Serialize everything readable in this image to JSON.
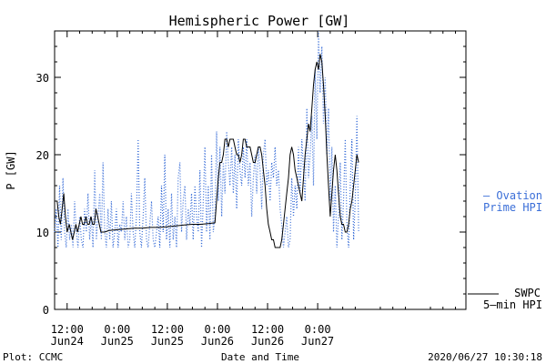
{
  "chart_data": {
    "type": "line",
    "title": "Hemispheric Power [GW]",
    "ylabel": "P [GW]",
    "xlabel": "Date and Time",
    "ylim": [
      0,
      36
    ],
    "yticks": [
      0,
      10,
      20,
      30
    ],
    "x_unit": "hours since 2020-06-24 00:00",
    "xlim": [
      9.0,
      107.5
    ],
    "x_ticks": [
      {
        "x": 12,
        "line1": "12:00",
        "line2": "Jun24"
      },
      {
        "x": 24,
        "line1": "0:00",
        "line2": "Jun25"
      },
      {
        "x": 36,
        "line1": "12:00",
        "line2": "Jun25"
      },
      {
        "x": 48,
        "line1": "0:00",
        "line2": "Jun26"
      },
      {
        "x": 60,
        "line1": "12:00",
        "line2": "Jun26"
      },
      {
        "x": 72,
        "line1": "0:00",
        "line2": "Jun27"
      }
    ],
    "footer": {
      "left": "Plot: CCMC",
      "timestamp": "2020/06/27 10:30:18"
    },
    "series": [
      {
        "name": "Ovation Prime HPI",
        "legend_label": "— Ovation",
        "legend_label2": "Prime HPI",
        "style": "dotted",
        "color": "#3b6fd8",
        "points": [
          [
            9.0,
            10
          ],
          [
            9.4,
            13
          ],
          [
            9.8,
            8
          ],
          [
            10.2,
            16
          ],
          [
            10.6,
            9
          ],
          [
            11.0,
            17
          ],
          [
            11.4,
            10
          ],
          [
            11.8,
            8
          ],
          [
            12.2,
            13
          ],
          [
            12.6,
            9
          ],
          [
            13.0,
            11
          ],
          [
            13.4,
            8
          ],
          [
            13.8,
            14
          ],
          [
            14.2,
            10
          ],
          [
            14.6,
            8
          ],
          [
            15.0,
            12
          ],
          [
            15.4,
            9
          ],
          [
            15.8,
            8
          ],
          [
            16.2,
            13
          ],
          [
            16.6,
            10
          ],
          [
            17.0,
            15
          ],
          [
            17.4,
            9
          ],
          [
            17.8,
            12
          ],
          [
            18.2,
            8
          ],
          [
            18.6,
            18
          ],
          [
            19.0,
            9
          ],
          [
            19.4,
            12
          ],
          [
            19.8,
            15
          ],
          [
            20.2,
            9
          ],
          [
            20.6,
            19
          ],
          [
            21.0,
            10
          ],
          [
            21.4,
            8
          ],
          [
            21.8,
            13
          ],
          [
            22.2,
            9
          ],
          [
            22.6,
            14
          ],
          [
            23.0,
            8
          ],
          [
            23.4,
            10
          ],
          [
            23.8,
            13
          ],
          [
            24.2,
            8
          ],
          [
            24.6,
            11
          ],
          [
            25.0,
            10
          ],
          [
            25.4,
            14
          ],
          [
            25.8,
            9
          ],
          [
            26.2,
            12
          ],
          [
            26.6,
            8
          ],
          [
            27.0,
            9
          ],
          [
            27.4,
            15
          ],
          [
            27.8,
            10
          ],
          [
            28.2,
            8
          ],
          [
            28.6,
            12
          ],
          [
            29.0,
            22
          ],
          [
            29.4,
            10
          ],
          [
            29.8,
            8
          ],
          [
            30.2,
            12
          ],
          [
            30.6,
            17
          ],
          [
            31.0,
            9
          ],
          [
            31.4,
            8
          ],
          [
            31.8,
            11
          ],
          [
            32.2,
            14
          ],
          [
            32.6,
            9
          ],
          [
            33.0,
            8
          ],
          [
            33.4,
            10
          ],
          [
            33.8,
            12
          ],
          [
            34.2,
            8
          ],
          [
            34.6,
            16
          ],
          [
            35.0,
            10
          ],
          [
            35.4,
            20
          ],
          [
            35.8,
            9
          ],
          [
            36.2,
            13
          ],
          [
            36.6,
            8
          ],
          [
            37.0,
            15
          ],
          [
            37.4,
            9
          ],
          [
            37.8,
            12
          ],
          [
            38.2,
            8
          ],
          [
            38.6,
            17
          ],
          [
            39.0,
            19
          ],
          [
            39.4,
            10
          ],
          [
            39.8,
            14
          ],
          [
            40.2,
            16
          ],
          [
            40.6,
            9
          ],
          [
            41.0,
            13
          ],
          [
            41.4,
            11
          ],
          [
            41.8,
            15
          ],
          [
            42.2,
            9
          ],
          [
            42.6,
            16
          ],
          [
            43.0,
            12
          ],
          [
            43.4,
            10
          ],
          [
            43.8,
            18
          ],
          [
            44.2,
            8
          ],
          [
            44.6,
            14
          ],
          [
            45.0,
            21
          ],
          [
            45.4,
            10
          ],
          [
            45.8,
            16
          ],
          [
            46.2,
            9
          ],
          [
            46.6,
            20
          ],
          [
            47.0,
            10
          ],
          [
            47.4,
            12
          ],
          [
            47.8,
            23
          ],
          [
            48.2,
            14
          ],
          [
            48.6,
            21
          ],
          [
            49.0,
            12
          ],
          [
            49.4,
            19
          ],
          [
            49.8,
            15
          ],
          [
            50.2,
            23
          ],
          [
            50.6,
            19
          ],
          [
            51.0,
            16
          ],
          [
            51.4,
            21
          ],
          [
            51.8,
            15
          ],
          [
            52.2,
            20
          ],
          [
            52.6,
            13
          ],
          [
            53.0,
            22
          ],
          [
            53.4,
            18
          ],
          [
            53.8,
            16
          ],
          [
            54.2,
            21
          ],
          [
            54.6,
            17
          ],
          [
            55.0,
            22
          ],
          [
            55.4,
            16
          ],
          [
            55.8,
            19
          ],
          [
            56.2,
            12
          ],
          [
            56.6,
            17
          ],
          [
            57.0,
            20
          ],
          [
            57.4,
            15
          ],
          [
            57.8,
            21
          ],
          [
            58.2,
            18
          ],
          [
            58.6,
            13
          ],
          [
            59.0,
            20
          ],
          [
            59.4,
            22
          ],
          [
            59.8,
            16
          ],
          [
            60.2,
            18
          ],
          [
            60.6,
            14
          ],
          [
            61.0,
            19
          ],
          [
            61.4,
            17
          ],
          [
            61.8,
            21
          ],
          [
            62.2,
            16
          ],
          [
            62.6,
            18
          ],
          [
            63.0,
            13
          ],
          [
            63.4,
            11
          ],
          [
            63.8,
            8
          ],
          [
            64.2,
            10
          ],
          [
            64.6,
            12
          ],
          [
            65.0,
            8
          ],
          [
            65.4,
            9
          ],
          [
            65.8,
            17
          ],
          [
            66.2,
            12
          ],
          [
            66.6,
            16
          ],
          [
            67.0,
            13
          ],
          [
            67.4,
            21
          ],
          [
            67.8,
            15
          ],
          [
            68.2,
            22
          ],
          [
            68.6,
            18
          ],
          [
            69.0,
            14
          ],
          [
            69.4,
            26
          ],
          [
            69.8,
            17
          ],
          [
            70.2,
            20
          ],
          [
            70.6,
            25
          ],
          [
            71.0,
            16
          ],
          [
            71.4,
            31
          ],
          [
            71.8,
            22
          ],
          [
            72.2,
            36
          ],
          [
            72.6,
            28
          ],
          [
            73.0,
            34
          ],
          [
            73.4,
            24
          ],
          [
            73.8,
            30
          ],
          [
            74.2,
            20
          ],
          [
            74.6,
            26
          ],
          [
            75.0,
            14
          ],
          [
            75.4,
            21
          ],
          [
            75.8,
            10
          ],
          [
            76.2,
            16
          ],
          [
            76.6,
            8
          ],
          [
            77.0,
            12
          ],
          [
            77.4,
            19
          ],
          [
            77.8,
            9
          ],
          [
            78.2,
            14
          ],
          [
            78.6,
            22
          ],
          [
            79.0,
            11
          ],
          [
            79.4,
            8
          ],
          [
            79.8,
            16
          ],
          [
            80.2,
            22
          ],
          [
            80.6,
            9
          ],
          [
            81.0,
            14
          ],
          [
            81.4,
            25
          ],
          [
            81.8,
            10
          ]
        ]
      },
      {
        "name": "SWPC 5-min HPI",
        "legend_label": "SWPC",
        "legend_label2": "5—min HPI",
        "style": "solid",
        "color": "#000000",
        "points": [
          [
            9.0,
            14
          ],
          [
            9.6,
            14
          ],
          [
            10.0,
            12
          ],
          [
            10.4,
            11
          ],
          [
            10.8,
            13
          ],
          [
            11.2,
            15
          ],
          [
            11.6,
            12
          ],
          [
            12.0,
            10
          ],
          [
            12.5,
            11
          ],
          [
            12.9,
            10
          ],
          [
            13.3,
            9
          ],
          [
            13.7,
            10
          ],
          [
            14.1,
            11
          ],
          [
            14.5,
            10
          ],
          [
            14.9,
            11
          ],
          [
            15.3,
            12
          ],
          [
            15.7,
            11
          ],
          [
            16.1,
            11
          ],
          [
            16.5,
            12
          ],
          [
            16.9,
            11
          ],
          [
            17.3,
            11
          ],
          [
            17.7,
            12
          ],
          [
            18.1,
            11
          ],
          [
            18.5,
            11
          ],
          [
            18.9,
            13
          ],
          [
            19.3,
            12
          ],
          [
            19.7,
            11
          ],
          [
            20.1,
            10
          ],
          [
            20.5,
            10
          ],
          [
            21.0,
            10
          ],
          [
            22.0,
            10.2
          ],
          [
            24.0,
            10.3
          ],
          [
            26.0,
            10.4
          ],
          [
            28.0,
            10.5
          ],
          [
            30.0,
            10.5
          ],
          [
            32.0,
            10.6
          ],
          [
            34.0,
            10.6
          ],
          [
            36.0,
            10.7
          ],
          [
            38.0,
            10.8
          ],
          [
            40.0,
            10.9
          ],
          [
            42.0,
            11.0
          ],
          [
            44.0,
            11.0
          ],
          [
            46.0,
            11.1
          ],
          [
            47.4,
            11.2
          ],
          [
            47.8,
            14
          ],
          [
            48.2,
            17
          ],
          [
            48.6,
            19
          ],
          [
            49.0,
            19
          ],
          [
            49.4,
            20
          ],
          [
            49.8,
            22
          ],
          [
            50.2,
            22
          ],
          [
            50.6,
            21
          ],
          [
            51.0,
            22
          ],
          [
            51.4,
            22
          ],
          [
            51.8,
            22
          ],
          [
            52.2,
            21
          ],
          [
            52.6,
            20
          ],
          [
            53.0,
            20
          ],
          [
            53.4,
            19
          ],
          [
            53.8,
            20
          ],
          [
            54.2,
            22
          ],
          [
            54.6,
            22
          ],
          [
            55.0,
            21
          ],
          [
            55.4,
            21
          ],
          [
            55.8,
            21
          ],
          [
            56.2,
            20
          ],
          [
            56.6,
            19
          ],
          [
            57.0,
            19
          ],
          [
            57.4,
            20
          ],
          [
            57.8,
            21
          ],
          [
            58.2,
            21
          ],
          [
            58.6,
            20
          ],
          [
            59.0,
            18
          ],
          [
            59.4,
            16
          ],
          [
            59.8,
            13
          ],
          [
            60.2,
            11
          ],
          [
            60.6,
            10
          ],
          [
            61.0,
            9
          ],
          [
            61.4,
            9
          ],
          [
            61.8,
            8
          ],
          [
            62.2,
            8
          ],
          [
            62.6,
            8
          ],
          [
            63.0,
            8
          ],
          [
            63.4,
            9
          ],
          [
            63.8,
            11
          ],
          [
            64.2,
            13
          ],
          [
            64.6,
            15
          ],
          [
            65.0,
            17
          ],
          [
            65.4,
            20
          ],
          [
            65.8,
            21
          ],
          [
            66.2,
            20
          ],
          [
            66.6,
            18
          ],
          [
            67.0,
            17
          ],
          [
            67.4,
            16
          ],
          [
            67.8,
            15
          ],
          [
            68.2,
            14
          ],
          [
            68.6,
            17
          ],
          [
            69.0,
            20
          ],
          [
            69.4,
            22
          ],
          [
            69.8,
            24
          ],
          [
            70.2,
            23
          ],
          [
            70.6,
            26
          ],
          [
            71.0,
            29
          ],
          [
            71.4,
            31
          ],
          [
            71.8,
            32
          ],
          [
            72.2,
            31
          ],
          [
            72.6,
            33
          ],
          [
            73.0,
            32
          ],
          [
            73.4,
            29
          ],
          [
            73.8,
            25
          ],
          [
            74.2,
            20
          ],
          [
            74.6,
            16
          ],
          [
            75.0,
            12
          ],
          [
            75.4,
            15
          ],
          [
            75.8,
            18
          ],
          [
            76.2,
            20
          ],
          [
            76.6,
            18
          ],
          [
            77.0,
            15
          ],
          [
            77.4,
            12
          ],
          [
            77.8,
            11
          ],
          [
            78.2,
            11
          ],
          [
            78.6,
            10
          ],
          [
            79.0,
            10
          ],
          [
            79.4,
            11
          ],
          [
            79.8,
            13
          ],
          [
            80.2,
            14
          ],
          [
            80.6,
            16
          ],
          [
            81.0,
            18
          ],
          [
            81.4,
            20
          ],
          [
            81.8,
            19
          ]
        ]
      }
    ]
  }
}
